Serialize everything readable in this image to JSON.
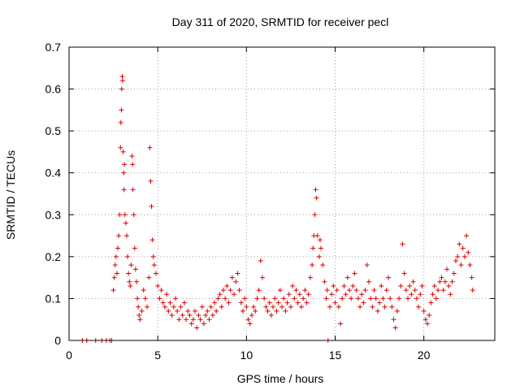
{
  "chart_data": {
    "type": "scatter",
    "title": "Day 311 of 2020, SRMTID for receiver pecl",
    "xlabel": "GPS time / hours",
    "ylabel": "SRMTID / TECUs",
    "xlim": [
      0,
      24
    ],
    "ylim": [
      0,
      0.7
    ],
    "xticks": [
      0,
      5,
      10,
      15,
      20
    ],
    "yticks": [
      0,
      0.1,
      0.2,
      0.3,
      0.4,
      0.5,
      0.6,
      0.7
    ],
    "xtick_labels": [
      "0",
      "5",
      "10",
      "15",
      "20"
    ],
    "ytick_labels": [
      "0",
      "0.1",
      "0.2",
      "0.3",
      "0.4",
      "0.5",
      "0.6",
      "0.7"
    ],
    "grid": true,
    "marker": "+",
    "color": "#dd0000",
    "series": [
      {
        "name": "SRMTID",
        "points": [
          [
            0.75,
            0.0
          ],
          [
            1.0,
            0.0
          ],
          [
            1.5,
            0.0
          ],
          [
            1.85,
            0.0
          ],
          [
            2.1,
            0.0
          ],
          [
            2.3,
            0.0
          ],
          [
            2.4,
            0.0
          ],
          [
            2.5,
            0.12
          ],
          [
            2.55,
            0.15
          ],
          [
            2.6,
            0.18
          ],
          [
            2.65,
            0.2
          ],
          [
            2.7,
            0.16
          ],
          [
            2.75,
            0.22
          ],
          [
            2.8,
            0.25
          ],
          [
            2.85,
            0.3
          ],
          [
            2.9,
            0.46
          ],
          [
            2.92,
            0.52
          ],
          [
            2.95,
            0.55
          ],
          [
            2.97,
            0.6
          ],
          [
            3.0,
            0.63
          ],
          [
            3.02,
            0.62
          ],
          [
            3.05,
            0.45
          ],
          [
            3.08,
            0.4
          ],
          [
            3.1,
            0.36
          ],
          [
            3.12,
            0.42
          ],
          [
            3.15,
            0.3
          ],
          [
            3.2,
            0.28
          ],
          [
            3.25,
            0.25
          ],
          [
            3.3,
            0.2
          ],
          [
            3.35,
            0.16
          ],
          [
            3.4,
            0.14
          ],
          [
            3.45,
            0.13
          ],
          [
            3.5,
            0.18
          ],
          [
            3.55,
            0.44
          ],
          [
            3.58,
            0.42
          ],
          [
            3.6,
            0.36
          ],
          [
            3.65,
            0.3
          ],
          [
            3.7,
            0.22
          ],
          [
            3.75,
            0.17
          ],
          [
            3.8,
            0.14
          ],
          [
            3.85,
            0.1
          ],
          [
            3.9,
            0.08
          ],
          [
            3.95,
            0.06
          ],
          [
            4.0,
            0.05
          ],
          [
            4.1,
            0.07
          ],
          [
            4.2,
            0.12
          ],
          [
            4.3,
            0.1
          ],
          [
            4.4,
            0.08
          ],
          [
            4.5,
            0.15
          ],
          [
            4.55,
            0.46
          ],
          [
            4.6,
            0.38
          ],
          [
            4.65,
            0.32
          ],
          [
            4.7,
            0.24
          ],
          [
            4.75,
            0.2
          ],
          [
            4.8,
            0.18
          ],
          [
            4.9,
            0.16
          ],
          [
            5.0,
            0.13
          ],
          [
            5.1,
            0.1
          ],
          [
            5.2,
            0.12
          ],
          [
            5.3,
            0.09
          ],
          [
            5.4,
            0.08
          ],
          [
            5.5,
            0.11
          ],
          [
            5.6,
            0.07
          ],
          [
            5.7,
            0.09
          ],
          [
            5.8,
            0.06
          ],
          [
            5.9,
            0.08
          ],
          [
            6.0,
            0.1
          ],
          [
            6.1,
            0.07
          ],
          [
            6.2,
            0.05
          ],
          [
            6.3,
            0.08
          ],
          [
            6.4,
            0.06
          ],
          [
            6.5,
            0.09
          ],
          [
            6.6,
            0.05
          ],
          [
            6.7,
            0.07
          ],
          [
            6.8,
            0.06
          ],
          [
            6.9,
            0.04
          ],
          [
            7.0,
            0.05
          ],
          [
            7.1,
            0.07
          ],
          [
            7.2,
            0.03
          ],
          [
            7.3,
            0.06
          ],
          [
            7.4,
            0.05
          ],
          [
            7.5,
            0.08
          ],
          [
            7.6,
            0.04
          ],
          [
            7.7,
            0.06
          ],
          [
            7.8,
            0.07
          ],
          [
            7.9,
            0.05
          ],
          [
            8.0,
            0.08
          ],
          [
            8.1,
            0.06
          ],
          [
            8.2,
            0.09
          ],
          [
            8.3,
            0.07
          ],
          [
            8.4,
            0.1
          ],
          [
            8.5,
            0.11
          ],
          [
            8.6,
            0.08
          ],
          [
            8.7,
            0.12
          ],
          [
            8.8,
            0.1
          ],
          [
            8.9,
            0.13
          ],
          [
            9.0,
            0.09
          ],
          [
            9.1,
            0.12
          ],
          [
            9.2,
            0.15
          ],
          [
            9.3,
            0.11
          ],
          [
            9.4,
            0.14
          ],
          [
            9.5,
            0.16
          ],
          [
            9.6,
            0.12
          ],
          [
            9.7,
            0.09
          ],
          [
            9.8,
            0.07
          ],
          [
            9.9,
            0.1
          ],
          [
            10.0,
            0.08
          ],
          [
            10.1,
            0.05
          ],
          [
            10.2,
            0.04
          ],
          [
            10.3,
            0.06
          ],
          [
            10.4,
            0.08
          ],
          [
            10.5,
            0.07
          ],
          [
            10.6,
            0.1
          ],
          [
            10.7,
            0.12
          ],
          [
            10.8,
            0.19
          ],
          [
            10.9,
            0.15
          ],
          [
            11.0,
            0.1
          ],
          [
            11.1,
            0.08
          ],
          [
            11.2,
            0.07
          ],
          [
            11.3,
            0.09
          ],
          [
            11.4,
            0.06
          ],
          [
            11.5,
            0.08
          ],
          [
            11.6,
            0.1
          ],
          [
            11.7,
            0.07
          ],
          [
            11.8,
            0.09
          ],
          [
            11.9,
            0.12
          ],
          [
            12.0,
            0.08
          ],
          [
            12.1,
            0.1
          ],
          [
            12.2,
            0.07
          ],
          [
            12.3,
            0.09
          ],
          [
            12.4,
            0.11
          ],
          [
            12.5,
            0.08
          ],
          [
            12.6,
            0.13
          ],
          [
            12.7,
            0.1
          ],
          [
            12.8,
            0.12
          ],
          [
            12.9,
            0.09
          ],
          [
            13.0,
            0.11
          ],
          [
            13.1,
            0.08
          ],
          [
            13.2,
            0.1
          ],
          [
            13.3,
            0.12
          ],
          [
            13.4,
            0.09
          ],
          [
            13.5,
            0.11
          ],
          [
            13.6,
            0.15
          ],
          [
            13.7,
            0.18
          ],
          [
            13.75,
            0.22
          ],
          [
            13.8,
            0.25
          ],
          [
            13.85,
            0.3
          ],
          [
            13.9,
            0.36
          ],
          [
            13.95,
            0.34
          ],
          [
            14.0,
            0.25
          ],
          [
            14.1,
            0.2
          ],
          [
            14.15,
            0.24
          ],
          [
            14.2,
            0.22
          ],
          [
            14.3,
            0.18
          ],
          [
            14.4,
            0.14
          ],
          [
            14.5,
            0.1
          ],
          [
            14.55,
            0.12
          ],
          [
            14.6,
            0.0
          ],
          [
            14.7,
            0.08
          ],
          [
            14.8,
            0.11
          ],
          [
            14.9,
            0.13
          ],
          [
            15.0,
            0.09
          ],
          [
            15.1,
            0.12
          ],
          [
            15.2,
            0.08
          ],
          [
            15.3,
            0.04
          ],
          [
            15.4,
            0.1
          ],
          [
            15.5,
            0.13
          ],
          [
            15.6,
            0.11
          ],
          [
            15.7,
            0.15
          ],
          [
            15.8,
            0.12
          ],
          [
            15.9,
            0.1
          ],
          [
            16.0,
            0.13
          ],
          [
            16.1,
            0.16
          ],
          [
            16.2,
            0.12
          ],
          [
            16.3,
            0.1
          ],
          [
            16.4,
            0.08
          ],
          [
            16.5,
            0.11
          ],
          [
            16.6,
            0.09
          ],
          [
            16.7,
            0.12
          ],
          [
            16.8,
            0.18
          ],
          [
            16.9,
            0.14
          ],
          [
            17.0,
            0.1
          ],
          [
            17.1,
            0.08
          ],
          [
            17.2,
            0.12
          ],
          [
            17.3,
            0.1
          ],
          [
            17.4,
            0.07
          ],
          [
            17.5,
            0.09
          ],
          [
            17.6,
            0.13
          ],
          [
            17.7,
            0.1
          ],
          [
            17.8,
            0.08
          ],
          [
            17.9,
            0.12
          ],
          [
            18.0,
            0.15
          ],
          [
            18.1,
            0.1
          ],
          [
            18.2,
            0.08
          ],
          [
            18.3,
            0.05
          ],
          [
            18.4,
            0.03
          ],
          [
            18.5,
            0.07
          ],
          [
            18.6,
            0.1
          ],
          [
            18.7,
            0.13
          ],
          [
            18.8,
            0.23
          ],
          [
            18.9,
            0.16
          ],
          [
            19.0,
            0.12
          ],
          [
            19.1,
            0.1
          ],
          [
            19.2,
            0.13
          ],
          [
            19.3,
            0.11
          ],
          [
            19.4,
            0.14
          ],
          [
            19.5,
            0.12
          ],
          [
            19.6,
            0.1
          ],
          [
            19.7,
            0.08
          ],
          [
            19.8,
            0.11
          ],
          [
            19.9,
            0.13
          ],
          [
            20.0,
            0.07
          ],
          [
            20.1,
            0.05
          ],
          [
            20.2,
            0.04
          ],
          [
            20.3,
            0.06
          ],
          [
            20.4,
            0.09
          ],
          [
            20.5,
            0.11
          ],
          [
            20.6,
            0.13
          ],
          [
            20.7,
            0.1
          ],
          [
            20.8,
            0.12
          ],
          [
            20.9,
            0.14
          ],
          [
            21.0,
            0.15
          ],
          [
            21.1,
            0.12
          ],
          [
            21.2,
            0.14
          ],
          [
            21.3,
            0.17
          ],
          [
            21.4,
            0.13
          ],
          [
            21.5,
            0.11
          ],
          [
            21.6,
            0.14
          ],
          [
            21.7,
            0.16
          ],
          [
            21.8,
            0.19
          ],
          [
            21.9,
            0.2
          ],
          [
            22.0,
            0.23
          ],
          [
            22.1,
            0.18
          ],
          [
            22.2,
            0.22
          ],
          [
            22.3,
            0.2
          ],
          [
            22.4,
            0.25
          ],
          [
            22.5,
            0.21
          ],
          [
            22.6,
            0.18
          ],
          [
            22.7,
            0.15
          ],
          [
            22.75,
            0.12
          ]
        ]
      }
    ]
  }
}
